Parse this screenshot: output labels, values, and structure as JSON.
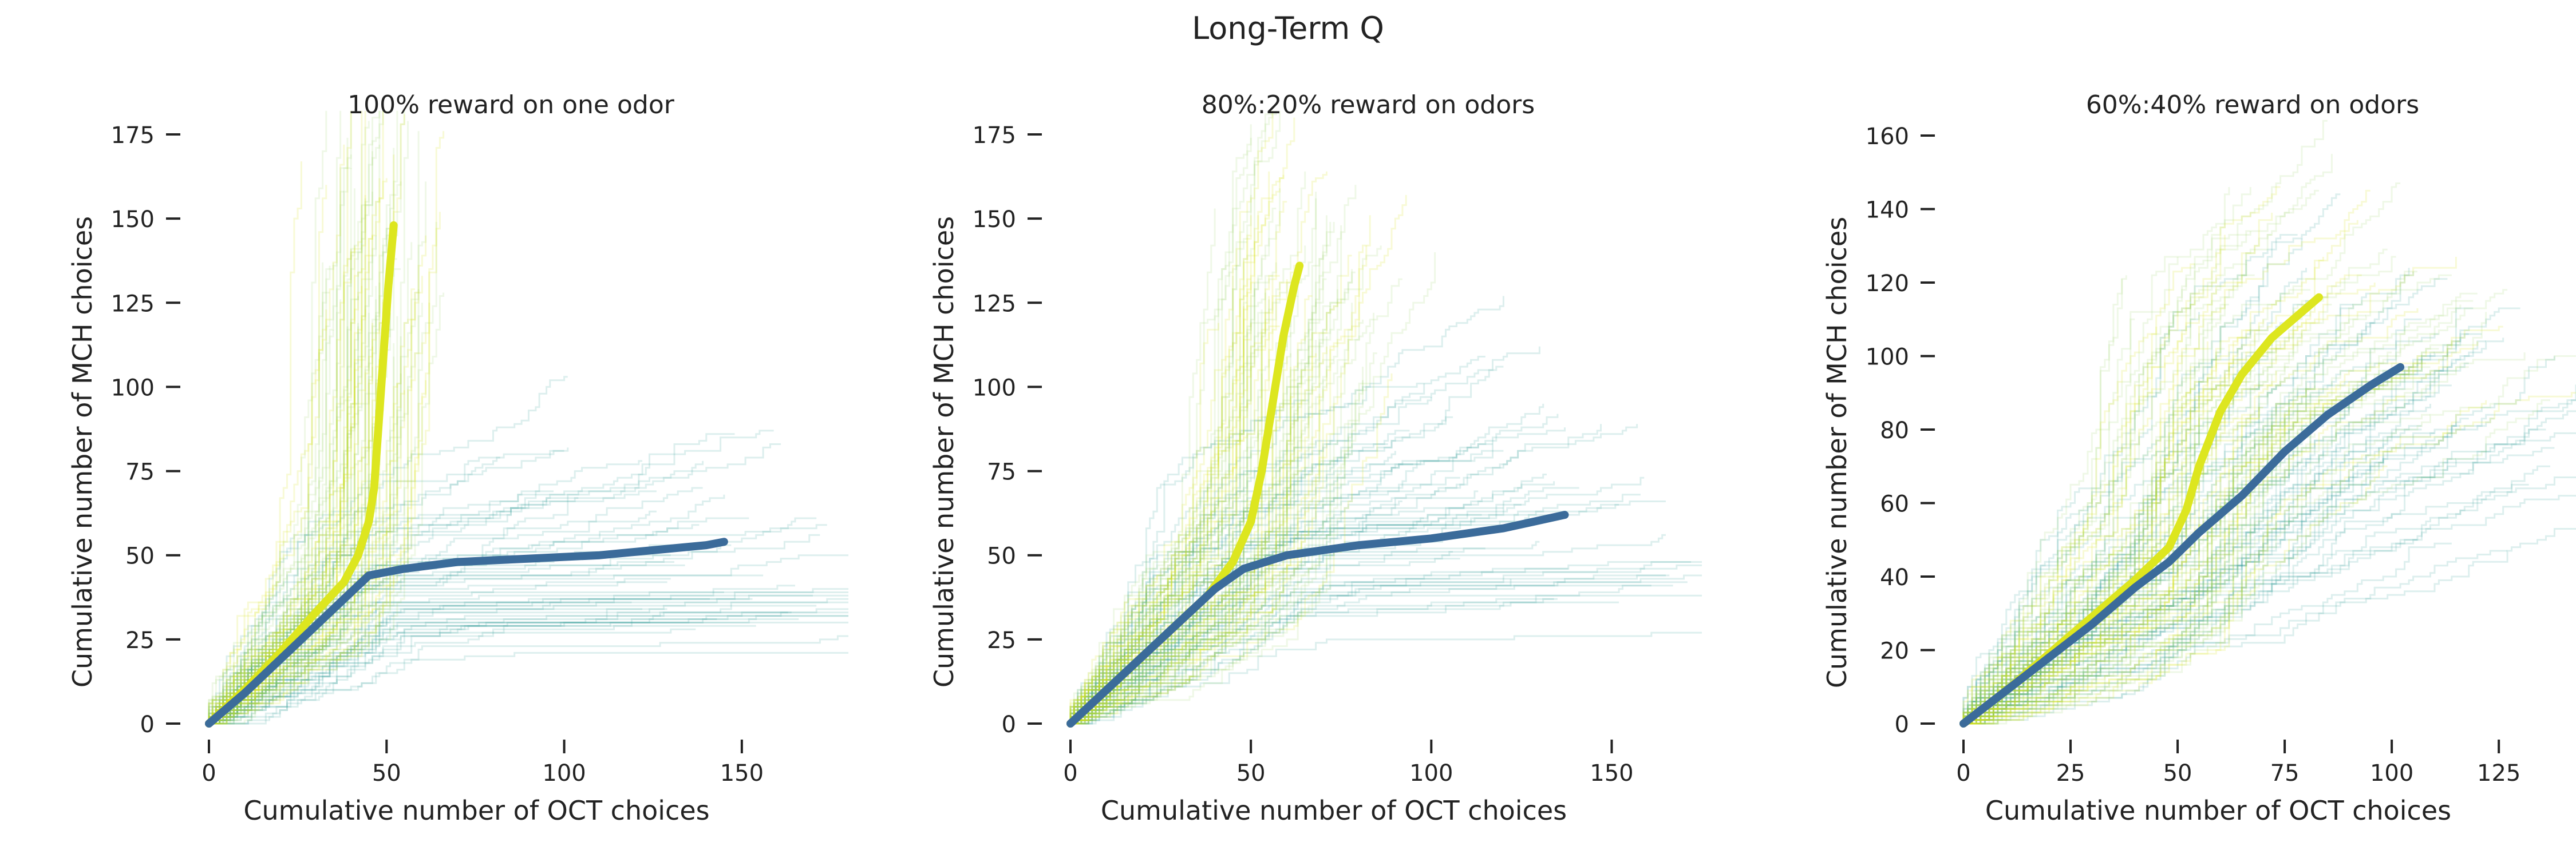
{
  "suptitle": "Long-Term Q",
  "colors": {
    "trace_yellow": "#d6e21a",
    "trace_green": "#8fcf52",
    "trace_teal": "#2a9c97",
    "mean_yellow": "#dde61f",
    "mean_blue": "#3b6b9a",
    "axis": "#222222"
  },
  "chart_data": [
    {
      "type": "line",
      "title": "100% reward on one odor",
      "xlabel": "Cumulative number of OCT choices",
      "ylabel": "Cumulative number of MCH choices",
      "xlim": [
        0,
        170
      ],
      "ylim": [
        0,
        175
      ],
      "xticks": [
        0,
        50,
        100,
        150
      ],
      "yticks": [
        0,
        25,
        50,
        75,
        100,
        125,
        150,
        175
      ],
      "grid": false,
      "series": [
        {
          "role": "mean-yellow",
          "x": [
            0,
            10,
            20,
            30,
            38,
            42,
            45,
            46.5,
            47.5,
            48.5,
            49.5,
            50.5,
            51.5,
            52
          ],
          "y": [
            0,
            10,
            21,
            33,
            42,
            50,
            60,
            70,
            85,
            100,
            115,
            130,
            142,
            148
          ]
        },
        {
          "role": "mean-blue",
          "x": [
            0,
            10,
            20,
            30,
            38,
            45,
            55,
            70,
            90,
            110,
            125,
            140,
            145
          ],
          "y": [
            0,
            9,
            19,
            29,
            37,
            44,
            46,
            48,
            49,
            50,
            51.5,
            53,
            54
          ]
        }
      ]
    },
    {
      "type": "line",
      "title": "80%:20% reward on odors",
      "xlabel": "Cumulative number of OCT choices",
      "ylabel": "Cumulative number of MCH choices",
      "xlim": [
        0,
        165
      ],
      "ylim": [
        0,
        175
      ],
      "xticks": [
        0,
        50,
        100,
        150
      ],
      "yticks": [
        0,
        25,
        50,
        75,
        100,
        125,
        150,
        175
      ],
      "grid": false,
      "series": [
        {
          "role": "mean-yellow",
          "x": [
            0,
            10,
            20,
            30,
            38,
            45,
            50,
            53,
            56,
            59,
            62,
            63.5
          ],
          "y": [
            0,
            10,
            20,
            30,
            38,
            48,
            60,
            75,
            95,
            115,
            130,
            136
          ]
        },
        {
          "role": "mean-blue",
          "x": [
            0,
            10,
            20,
            30,
            40,
            48,
            60,
            80,
            100,
            120,
            137
          ],
          "y": [
            0,
            10,
            20,
            30,
            40,
            46,
            50,
            53,
            55,
            58,
            62
          ]
        }
      ]
    },
    {
      "type": "line",
      "title": "60%:40% reward on odors",
      "xlabel": "Cumulative number of OCT choices",
      "ylabel": "Cumulative number of MCH choices",
      "xlim": [
        0,
        135
      ],
      "ylim": [
        0,
        160
      ],
      "xticks": [
        0,
        25,
        50,
        75,
        100,
        125
      ],
      "yticks": [
        0,
        20,
        40,
        60,
        80,
        100,
        120,
        140,
        160
      ],
      "grid": false,
      "series": [
        {
          "role": "mean-yellow",
          "x": [
            0,
            10,
            20,
            30,
            40,
            48,
            52,
            55,
            60,
            65,
            72,
            78,
            83
          ],
          "y": [
            0,
            9,
            19,
            29,
            39,
            48,
            58,
            70,
            85,
            95,
            105,
            111,
            116
          ]
        },
        {
          "role": "mean-blue",
          "x": [
            0,
            10,
            20,
            30,
            40,
            48,
            55,
            65,
            75,
            85,
            95,
            102
          ],
          "y": [
            0,
            9,
            18,
            27,
            37,
            44,
            52,
            62,
            74,
            84,
            92,
            97
          ]
        }
      ]
    }
  ]
}
